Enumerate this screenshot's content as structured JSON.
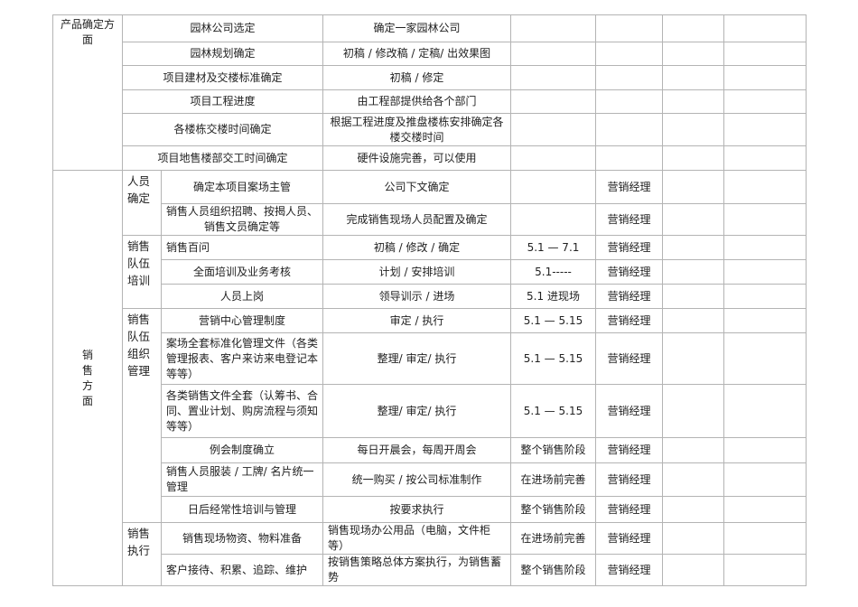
{
  "product": {
    "label": "产品确定方面",
    "rows": [
      {
        "item": "园林公司选定",
        "desc": "确定一家园林公司"
      },
      {
        "item": "园林规划确定",
        "desc": "初稿 / 修改稿 / 定稿/ 出效果图"
      },
      {
        "item": "项目建材及交楼标准确定",
        "desc": "初稿 / 修定"
      },
      {
        "item": "项目工程进度",
        "desc": "由工程部提供给各个部门"
      },
      {
        "item": "各楼栋交楼时间确定",
        "desc": "根据工程进度及推盘楼栋安排确定各楼交楼时间"
      },
      {
        "item": "项目地售楼部交工时间确定",
        "desc": "硬件设施完善，可以使用"
      }
    ]
  },
  "sales": {
    "label": "销售方面",
    "groups": [
      {
        "label": "人员确定",
        "rows": [
          {
            "item": "确定本项目案场主管",
            "desc": "公司下文确定",
            "date": "",
            "owner": "营销经理"
          },
          {
            "item": "销售人员组织招聘、按揭人员、销售文员确定等",
            "desc": "完成销售现场人员配置及确定",
            "date": "",
            "owner": "营销经理"
          }
        ]
      },
      {
        "label": "销售队伍培训",
        "rows": [
          {
            "item": "销售百问",
            "desc": "初稿 / 修改 / 确定",
            "date": "5.1 — 7.1",
            "owner": "营销经理"
          },
          {
            "item": "全面培训及业务考核",
            "desc": "计划 / 安排培训",
            "date": "5.1-----",
            "owner": "营销经理"
          },
          {
            "item": "人员上岗",
            "desc": "领导训示 / 进场",
            "date": "5.1  进现场",
            "owner": "营销经理"
          }
        ]
      },
      {
        "label": "销售队伍组织管理",
        "rows": [
          {
            "item": "营销中心管理制度",
            "desc": "审定 / 执行",
            "date": "5.1 — 5.15",
            "owner": "营销经理"
          },
          {
            "item": "案场全套标准化管理文件（各类管理报表、客户来访来电登记本等等）",
            "desc": "整理/ 审定/ 执行",
            "date": "5.1 — 5.15",
            "owner": "营销经理"
          },
          {
            "item": "各类销售文件全套（认筹书、合同、置业计划、购房流程与须知等等）",
            "desc": "整理/ 审定/ 执行",
            "date": "5.1 — 5.15",
            "owner": "营销经理"
          },
          {
            "item": "例会制度确立",
            "desc": "每日开晨会，每周开周会",
            "date": "整个销售阶段",
            "owner": "营销经理"
          },
          {
            "item": "销售人员服装 / 工牌/ 名片统一管理",
            "desc": "统一购买 / 按公司标准制作",
            "date": "在进场前完善",
            "owner": "营销经理"
          },
          {
            "item": "日后经常性培训与管理",
            "desc": "按要求执行",
            "date": "整个销售阶段",
            "owner": "营销经理"
          }
        ]
      },
      {
        "label": "销售执行",
        "rows": [
          {
            "item": "销售现场物资、物料准备",
            "desc": "销售现场办公用品（电脑，文件柜等）",
            "date": "在进场前完善",
            "owner": "营销经理"
          },
          {
            "item": "客户接待、积累、追踪、维护",
            "desc": "按销售策略总体方案执行，为销售蓄势",
            "date": "整个销售阶段",
            "owner": "营销经理"
          }
        ]
      }
    ]
  }
}
